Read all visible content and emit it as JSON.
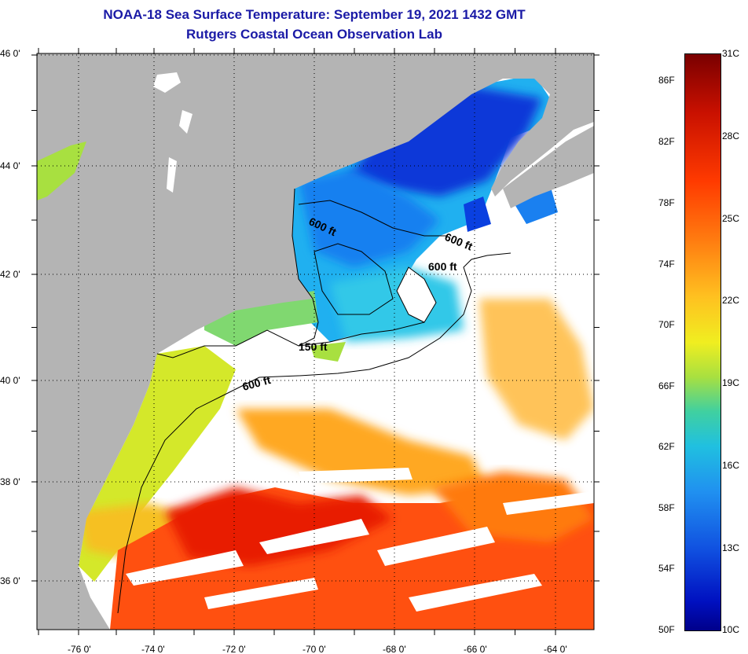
{
  "title": "NOAA-18 Sea Surface Temperature:  September 19, 2021 1432 GMT",
  "subtitle": "Rutgers Coastal Ocean Observation Lab",
  "lat_labels": [
    "46 0'",
    "44 0'",
    "42 0'",
    "40 0'",
    "38 0'",
    "36 0'"
  ],
  "lon_labels": [
    "-76 0'",
    "-74 0'",
    "-72 0'",
    "-70 0'",
    "-68 0'",
    "-66 0'",
    "-64 0'"
  ],
  "contour_labels": [
    "600 ft",
    "600 ft",
    "600 ft",
    "150 ft",
    "600 ft"
  ],
  "colorbar": {
    "f_labels": [
      "86F",
      "82F",
      "78F",
      "74F",
      "70F",
      "66F",
      "62F",
      "58F",
      "54F",
      "50F"
    ],
    "c_labels": [
      "31C",
      "28C",
      "25C",
      "22C",
      "19C",
      "16C",
      "13C",
      "10C"
    ]
  },
  "colors": {
    "land": "#b4b4b4",
    "title": "#1a1aa6"
  }
}
